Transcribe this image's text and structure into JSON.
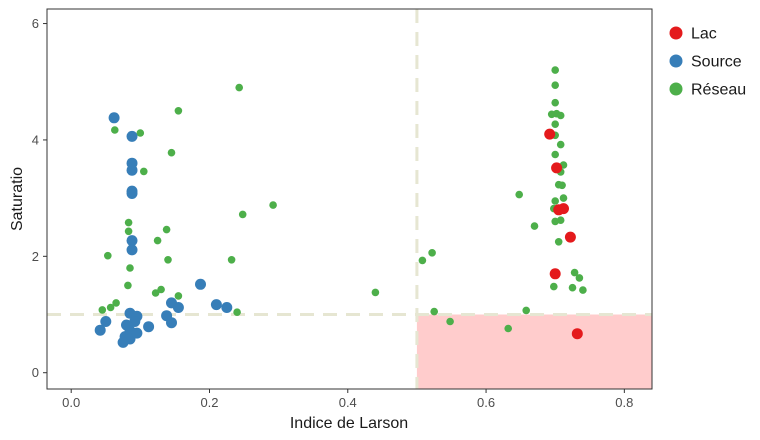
{
  "chart_data": {
    "type": "scatter",
    "xlabel": "Indice de Larson",
    "ylabel": "Saturatio",
    "xlim": [
      -0.035,
      0.84
    ],
    "ylim": [
      -0.28,
      6.25
    ],
    "x_ticks": [
      0.0,
      0.2,
      0.4,
      0.6,
      0.8
    ],
    "x_tick_labels": [
      "0.0",
      "0.2",
      "0.4",
      "0.6",
      "0.8"
    ],
    "y_ticks": [
      0,
      2,
      4,
      6
    ],
    "y_tick_labels": [
      "0",
      "2",
      "4",
      "6"
    ],
    "grid": false,
    "legend_position": "right",
    "reference_lines": {
      "x": 0.5,
      "y": 1.0
    },
    "shaded_region": {
      "x": [
        0.5,
        0.84
      ],
      "y": [
        -0.28,
        1.0
      ],
      "color": "#ffcccc"
    },
    "series": [
      {
        "name": "Lac",
        "color": "#e41a1c",
        "points": [
          [
            0.692,
            4.1
          ],
          [
            0.702,
            3.52
          ],
          [
            0.705,
            2.8
          ],
          [
            0.712,
            2.82
          ],
          [
            0.722,
            2.33
          ],
          [
            0.7,
            1.7
          ],
          [
            0.732,
            0.67
          ]
        ]
      },
      {
        "name": "Source",
        "color": "#377eb8",
        "points": [
          [
            0.062,
            4.38
          ],
          [
            0.088,
            4.06
          ],
          [
            0.088,
            3.6
          ],
          [
            0.088,
            3.48
          ],
          [
            0.088,
            3.12
          ],
          [
            0.088,
            3.08
          ],
          [
            0.088,
            2.27
          ],
          [
            0.088,
            2.11
          ],
          [
            0.187,
            1.52
          ],
          [
            0.145,
            1.2
          ],
          [
            0.155,
            1.12
          ],
          [
            0.21,
            1.17
          ],
          [
            0.225,
            1.12
          ],
          [
            0.085,
            1.02
          ],
          [
            0.095,
            0.97
          ],
          [
            0.138,
            0.98
          ],
          [
            0.05,
            0.88
          ],
          [
            0.092,
            0.88
          ],
          [
            0.08,
            0.82
          ],
          [
            0.145,
            0.86
          ],
          [
            0.112,
            0.79
          ],
          [
            0.085,
            0.72
          ],
          [
            0.042,
            0.73
          ],
          [
            0.078,
            0.62
          ],
          [
            0.085,
            0.58
          ],
          [
            0.075,
            0.52
          ],
          [
            0.095,
            0.68
          ]
        ]
      },
      {
        "name": "Réseau",
        "color": "#4daf4a",
        "points": [
          [
            0.243,
            4.9
          ],
          [
            0.155,
            4.5
          ],
          [
            0.063,
            4.17
          ],
          [
            0.1,
            4.12
          ],
          [
            0.145,
            3.78
          ],
          [
            0.105,
            3.46
          ],
          [
            0.083,
            2.58
          ],
          [
            0.083,
            2.43
          ],
          [
            0.138,
            2.46
          ],
          [
            0.125,
            2.27
          ],
          [
            0.248,
            2.72
          ],
          [
            0.292,
            2.88
          ],
          [
            0.053,
            2.01
          ],
          [
            0.14,
            1.94
          ],
          [
            0.232,
            1.94
          ],
          [
            0.085,
            1.8
          ],
          [
            0.082,
            1.5
          ],
          [
            0.122,
            1.37
          ],
          [
            0.13,
            1.43
          ],
          [
            0.155,
            1.32
          ],
          [
            0.065,
            1.2
          ],
          [
            0.057,
            1.12
          ],
          [
            0.045,
            1.08
          ],
          [
            0.24,
            1.04
          ],
          [
            0.44,
            1.38
          ],
          [
            0.508,
            1.93
          ],
          [
            0.522,
            2.06
          ],
          [
            0.525,
            1.05
          ],
          [
            0.548,
            0.88
          ],
          [
            0.632,
            0.76
          ],
          [
            0.648,
            3.06
          ],
          [
            0.67,
            2.52
          ],
          [
            0.658,
            1.07
          ],
          [
            0.7,
            5.2
          ],
          [
            0.7,
            4.94
          ],
          [
            0.7,
            4.64
          ],
          [
            0.695,
            4.44
          ],
          [
            0.702,
            4.45
          ],
          [
            0.7,
            4.27
          ],
          [
            0.708,
            4.42
          ],
          [
            0.7,
            4.08
          ],
          [
            0.708,
            3.92
          ],
          [
            0.7,
            3.75
          ],
          [
            0.712,
            3.57
          ],
          [
            0.708,
            3.45
          ],
          [
            0.705,
            3.23
          ],
          [
            0.71,
            3.22
          ],
          [
            0.712,
            3.0
          ],
          [
            0.7,
            2.95
          ],
          [
            0.698,
            2.82
          ],
          [
            0.708,
            2.62
          ],
          [
            0.7,
            2.6
          ],
          [
            0.705,
            2.25
          ],
          [
            0.728,
            1.72
          ],
          [
            0.735,
            1.63
          ],
          [
            0.698,
            1.48
          ],
          [
            0.725,
            1.46
          ],
          [
            0.74,
            1.42
          ]
        ]
      }
    ]
  }
}
